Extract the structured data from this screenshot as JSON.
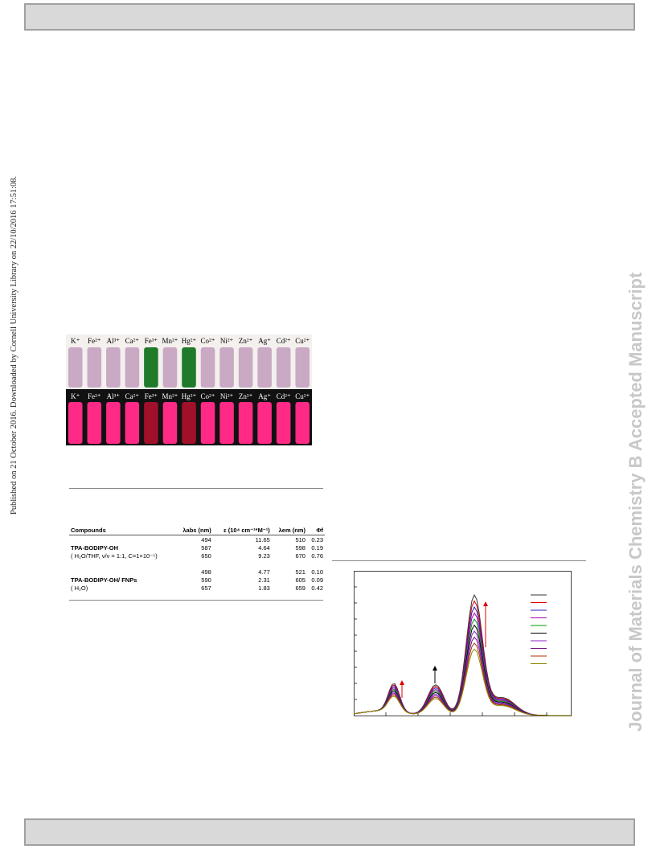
{
  "side_note": "Published on 21 October 2016. Downloaded by Cornell University Library on 22/10/2016 17:51:08.",
  "watermark": "Journal of Materials Chemistry B Accepted Manuscript",
  "photo": {
    "ions": [
      "K⁺",
      "Fe²⁺",
      "Al³⁺",
      "Ca²⁺",
      "Fe³⁺",
      "Mn²⁺",
      "Hg²⁺",
      "Co²⁺",
      "Ni²⁺",
      "Zn²⁺",
      "Ag⁺",
      "Cd²⁺",
      "Cu²⁺"
    ]
  },
  "table": {
    "header": [
      "Compounds",
      "λabs (nm)",
      "ε (10⁴ cm⁻¹*M⁻¹)",
      "λem (nm)",
      "Φf"
    ],
    "groups": [
      [
        {
          "cells": [
            "494",
            "11.65",
            "510",
            "0.23"
          ]
        },
        {
          "compound": "TPA-BODIPY-OH",
          "cells": [
            "587",
            "4.64",
            "598",
            "0.19"
          ]
        },
        {
          "compound": "( H₂O/THF, v/v = 1:1, C=1×10⁻⁵)",
          "cells": [
            "650",
            "9.23",
            "670",
            "0.76"
          ]
        }
      ],
      [
        {
          "cells": [
            "498",
            "4.77",
            "521",
            "0.10"
          ]
        },
        {
          "compound": "TPA-BODIPY-OH/ FNPs",
          "cells": [
            "590",
            "2.31",
            "605",
            "0.09"
          ]
        },
        {
          "compound": "( H₂O)",
          "cells": [
            "657",
            "1.83",
            "659",
            "0.42"
          ]
        }
      ]
    ]
  }
}
